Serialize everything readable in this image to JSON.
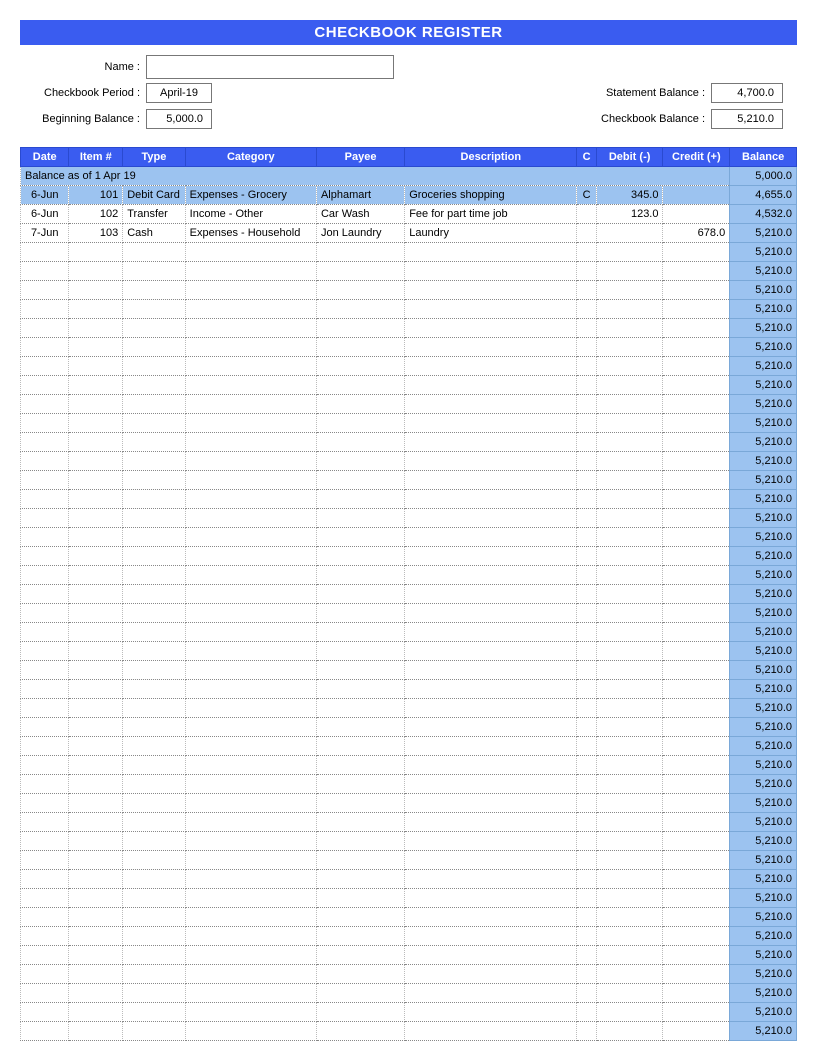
{
  "title": "CHECKBOOK REGISTER",
  "header": {
    "name_label": "Name :",
    "name_value": "",
    "period_label": "Checkbook Period :",
    "period_value": "April-19",
    "beginning_label": "Beginning Balance :",
    "beginning_value": "5,000.0",
    "statement_label": "Statement Balance :",
    "statement_value": "4,700.0",
    "checkbook_label": "Checkbook Balance :",
    "checkbook_value": "5,210.0"
  },
  "columns": {
    "date": "Date",
    "item": "Item #",
    "type": "Type",
    "category": "Category",
    "payee": "Payee",
    "description": "Description",
    "c": "C",
    "debit": "Debit  (-)",
    "credit": "Credit (+)",
    "balance": "Balance"
  },
  "col_widths": {
    "date": 45,
    "item": 50,
    "type": 58,
    "category": 122,
    "payee": 82,
    "description": 160,
    "c": 18,
    "debit": 62,
    "credit": 62,
    "balance": 62
  },
  "colors": {
    "header_bg": "#3a5cf0",
    "header_fg": "#ffffff",
    "balance_bg": "#9cc3f0",
    "grid_dot": "#888888",
    "page_bg": "#ffffff"
  },
  "opening": {
    "label": "Balance as of  1 Apr 19",
    "balance": "5,000.0"
  },
  "rows": [
    {
      "date": "6-Jun",
      "item": "101",
      "type": "Debit Card",
      "category": "Expenses - Grocery",
      "payee": "Alphamart",
      "description": "Groceries shopping",
      "c": "C",
      "debit": "345.0",
      "credit": "",
      "balance": "4,655.0",
      "highlight": true
    },
    {
      "date": "6-Jun",
      "item": "102",
      "type": "Transfer",
      "category": "Income - Other",
      "payee": "Car Wash",
      "description": "Fee for part time job",
      "c": "",
      "debit": "123.0",
      "credit": "",
      "balance": "4,532.0",
      "highlight": false
    },
    {
      "date": "7-Jun",
      "item": "103",
      "type": "Cash",
      "category": "Expenses - Household",
      "payee": "Jon Laundry",
      "description": "Laundry",
      "c": "",
      "debit": "",
      "credit": "678.0",
      "balance": "5,210.0",
      "highlight": false
    }
  ],
  "empty_row_count": 42,
  "empty_balance": "5,210.0"
}
